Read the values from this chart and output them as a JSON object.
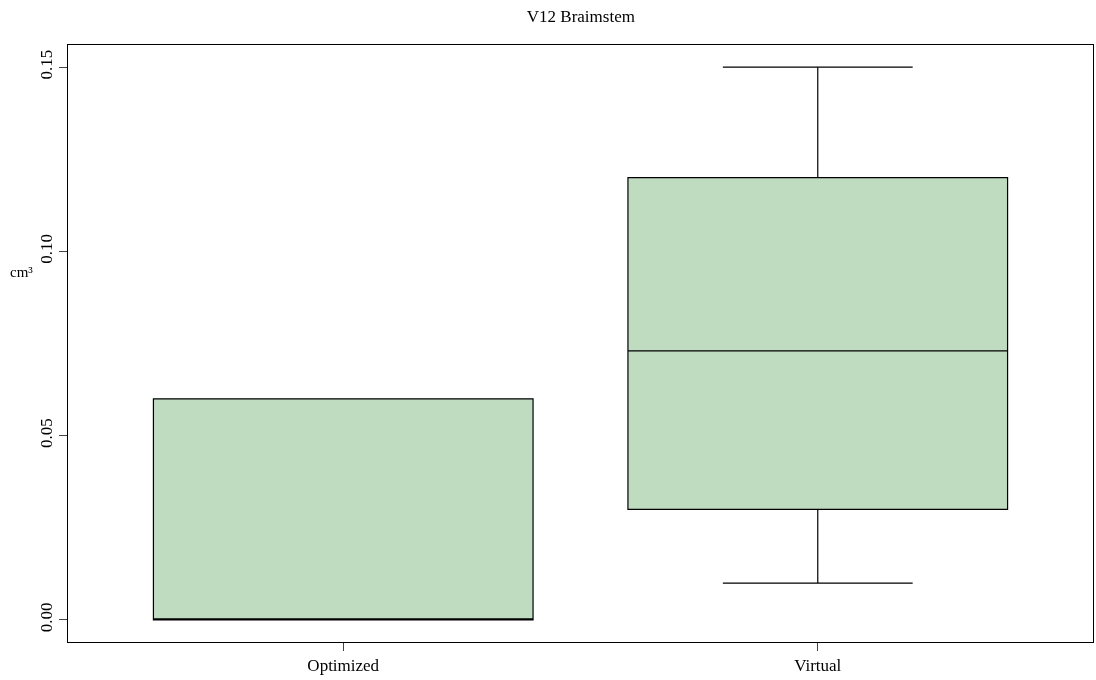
{
  "chart_data": {
    "type": "box",
    "title": "V12 Braimstem",
    "ylabel": "cm³",
    "categories": [
      "Optimized",
      "Virtual"
    ],
    "boxes": [
      {
        "low": 0,
        "q1": 0,
        "median": 0,
        "q3": 0.06,
        "high": 0.06
      },
      {
        "low": 0.01,
        "q1": 0.03,
        "median": 0.073,
        "q3": 0.12,
        "high": 0.15
      }
    ],
    "color": "#c0dcc0",
    "ylim": [
      -0.006,
      0.156
    ],
    "yticks": [
      {
        "value": 0,
        "label": "0.00"
      },
      {
        "value": 0.05,
        "label": "0.05"
      },
      {
        "value": 0.1,
        "label": "0.10"
      },
      {
        "value": 0.15,
        "label": "0.15"
      }
    ],
    "grid": false
  }
}
